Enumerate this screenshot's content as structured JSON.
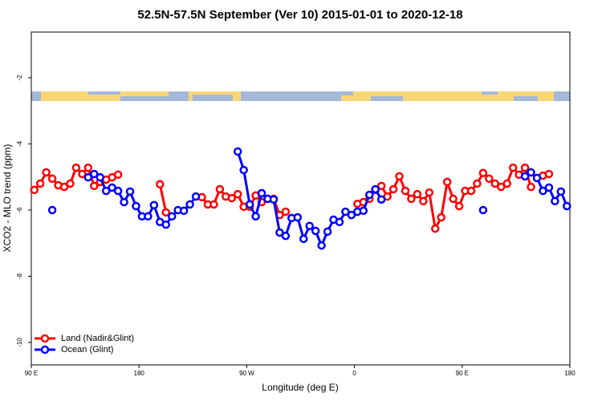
{
  "chart_data": {
    "type": "line",
    "title": "52.5N-57.5N September (Ver 10)   2015-01-01 to 2020-12-18",
    "xlabel": "Longitude (deg E)",
    "ylabel": "XCO2 - MLO trend (ppm)",
    "xlim": [
      90,
      540
    ],
    "ylim": [
      -10.68,
      -0.62
    ],
    "xticks": [
      {
        "value": 90,
        "label": "90 E"
      },
      {
        "value": 180,
        "label": "180"
      },
      {
        "value": 270,
        "label": "90 W"
      },
      {
        "value": 360,
        "label": "0"
      },
      {
        "value": 450,
        "label": "90 E"
      },
      {
        "value": 540,
        "label": "180"
      }
    ],
    "yticks": [
      -10,
      -8,
      -6,
      -4,
      -2
    ],
    "legend": "bottom-left",
    "x": [
      92.5,
      97.5,
      102.5,
      107.5,
      112.5,
      117.5,
      122.5,
      127.5,
      132.5,
      137.5,
      142.5,
      147.5,
      152.5,
      157.5,
      162.5,
      167.5,
      172.5,
      177.5,
      182.5,
      187.5,
      192.5,
      197.5,
      202.5,
      207.5,
      212.5,
      217.5,
      222.5,
      227.5,
      232.5,
      237.5,
      242.5,
      247.5,
      252.5,
      257.5,
      262.5,
      267.5,
      272.5,
      277.5,
      282.5,
      287.5,
      292.5,
      297.5,
      302.5,
      307.5,
      312.5,
      317.5,
      322.5,
      327.5,
      332.5,
      337.5,
      342.5,
      347.5,
      352.5,
      357.5,
      362.5,
      367.5,
      372.5,
      377.5,
      382.5,
      387.5,
      392.5,
      397.5,
      402.5,
      407.5,
      412.5,
      417.5,
      422.5,
      427.5,
      432.5,
      437.5,
      442.5,
      447.5,
      452.5,
      457.5,
      462.5,
      467.5,
      472.5,
      477.5,
      482.5,
      487.5,
      492.5,
      497.5,
      502.5,
      507.5,
      512.5,
      517.5,
      522.5,
      527.5,
      532.5,
      537.5
    ],
    "series": [
      {
        "name": "Land (Nadir&Glint)",
        "color": "#ff0000",
        "values": [
          -5.39,
          -5.2,
          -4.86,
          -5.05,
          -5.25,
          -5.3,
          -5.2,
          -4.72,
          -4.91,
          -4.72,
          -5.27,
          -5.15,
          -5.08,
          -5.01,
          -4.93,
          null,
          null,
          null,
          null,
          null,
          null,
          -5.22,
          -6.07,
          null,
          null,
          null,
          null,
          null,
          -5.61,
          -5.83,
          -5.83,
          -5.37,
          -5.59,
          -5.64,
          -5.52,
          -5.9,
          -5.9,
          -5.56,
          -5.76,
          -5.66,
          -5.66,
          -6.15,
          -6.05,
          null,
          null,
          null,
          null,
          null,
          null,
          null,
          null,
          null,
          null,
          null,
          -5.81,
          -5.76,
          -5.66,
          -5.39,
          -5.27,
          -5.59,
          -5.37,
          -4.98,
          -5.42,
          -5.66,
          -5.52,
          -5.73,
          -5.47,
          -6.56,
          -6.22,
          -5.15,
          -5.66,
          -5.88,
          -5.42,
          -5.42,
          -5.2,
          -4.88,
          -5.05,
          -5.2,
          -5.3,
          -5.2,
          -4.72,
          -4.93,
          -4.72,
          -5.3,
          null,
          -4.96,
          -4.91,
          null,
          null,
          null
        ]
      },
      {
        "name": "Ocean (Glint)",
        "color": "#0000ff",
        "values": [
          null,
          null,
          null,
          -6.0,
          null,
          null,
          null,
          null,
          null,
          -5.01,
          -4.91,
          -5.01,
          -5.42,
          -5.32,
          -5.42,
          -5.76,
          -5.44,
          -5.88,
          -6.19,
          -6.19,
          -5.85,
          -6.36,
          -6.44,
          -6.19,
          -6.0,
          -6.02,
          -5.83,
          -5.59,
          null,
          null,
          null,
          null,
          null,
          null,
          -4.23,
          -4.79,
          -5.83,
          -6.19,
          -5.49,
          -5.66,
          -5.68,
          -6.68,
          -6.78,
          -6.24,
          -6.22,
          -6.87,
          -6.48,
          -6.63,
          -7.07,
          -6.65,
          -6.29,
          -6.36,
          -6.05,
          -6.15,
          -6.05,
          -6.02,
          -5.54,
          -5.37,
          -5.68,
          null,
          null,
          null,
          null,
          null,
          null,
          null,
          null,
          null,
          null,
          null,
          null,
          null,
          null,
          null,
          null,
          -6.0,
          null,
          null,
          null,
          null,
          null,
          null,
          -4.98,
          -4.86,
          -5.03,
          -5.42,
          -5.32,
          -5.73,
          -5.44,
          -5.88
        ]
      }
    ]
  }
}
